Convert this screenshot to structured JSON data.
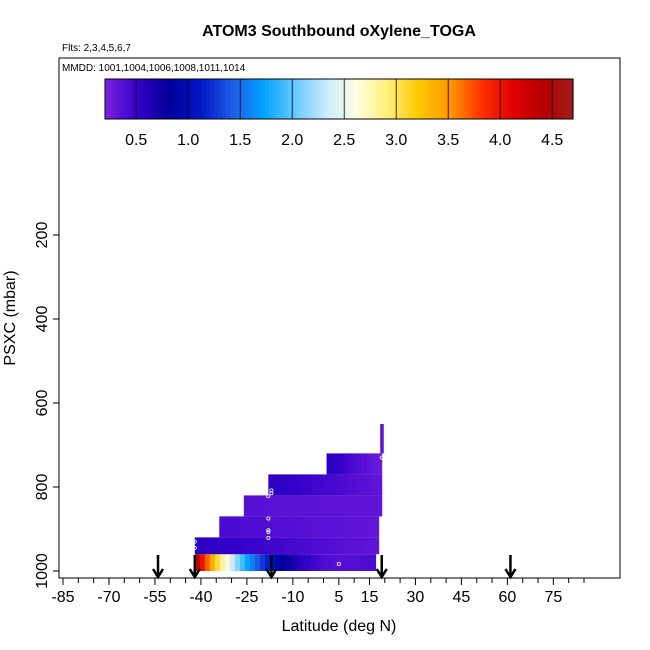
{
  "chart_data": {
    "type": "heatmap",
    "title": "ATOM3 Southbound oXylene_TOGA",
    "subtitle_flights": "Flts: 2,3,4,5,6,7",
    "subtitle_dates": "MMDD: 1001,1004,1006,1008,1011,1014",
    "xlabel": "Latitude (deg N)",
    "ylabel": "PSXC (mbar)",
    "xlim": [
      -85,
      85
    ],
    "ylim": [
      1000,
      0
    ],
    "x_ticks": [
      -85,
      -70,
      -55,
      -40,
      -25,
      -10,
      5,
      15,
      30,
      45,
      60,
      75
    ],
    "y_ticks": [
      200,
      400,
      600,
      800,
      1000
    ],
    "colorbar": {
      "ticks": [
        "0.5",
        "1.0",
        "1.5",
        "2.0",
        "2.5",
        "3.0",
        "3.5",
        "4.0",
        "4.5"
      ],
      "range": [
        0.2,
        4.7
      ]
    },
    "arrows_lat": [
      -54,
      -42,
      -17,
      19,
      61
    ],
    "cells": [
      {
        "x0": -42,
        "x1": 17,
        "y0": 960,
        "y1": 1000,
        "v0": 4.5,
        "v1": 0.4
      },
      {
        "x0": -42,
        "x1": 18,
        "y0": 920,
        "y1": 960,
        "v0": 0.55,
        "v1": 0.3
      },
      {
        "x0": -34,
        "x1": 18,
        "y0": 870,
        "y1": 920,
        "v0": 0.4,
        "v1": 0.3
      },
      {
        "x0": -26,
        "x1": 19,
        "y0": 820,
        "y1": 870,
        "v0": 0.35,
        "v1": 0.3
      },
      {
        "x0": -18,
        "x1": 19,
        "y0": 770,
        "y1": 820,
        "v0": 0.55,
        "v1": 0.3
      },
      {
        "x0": 1,
        "x1": 19,
        "y0": 720,
        "y1": 770,
        "v0": 0.55,
        "v1": 0.25
      },
      {
        "x0": 18.5,
        "x1": 19.5,
        "y0": 650,
        "y1": 720,
        "v0": 0.3,
        "v1": 0.3
      }
    ],
    "points": [
      {
        "lat": -42,
        "p": 945
      },
      {
        "lat": -42,
        "p": 930
      },
      {
        "lat": -17,
        "p": 808
      },
      {
        "lat": -17,
        "p": 815
      },
      {
        "lat": -18,
        "p": 822
      },
      {
        "lat": -18,
        "p": 875
      },
      {
        "lat": -18,
        "p": 903
      },
      {
        "lat": -18,
        "p": 907
      },
      {
        "lat": -18,
        "p": 921
      },
      {
        "lat": 5,
        "p": 983
      },
      {
        "lat": 18,
        "p": 985
      },
      {
        "lat": 18,
        "p": 995
      },
      {
        "lat": 19,
        "p": 730
      }
    ]
  },
  "colors": {
    "scale": [
      "#7a1fe0",
      "#3200c8",
      "#00009a",
      "#0018c8",
      "#1e5ae6",
      "#00a0ff",
      "#64c8ff",
      "#c8eaff",
      "#ffffe0",
      "#ffee78",
      "#ffc800",
      "#ff9600",
      "#ff3200",
      "#e00000",
      "#b40000",
      "#a02020"
    ]
  }
}
